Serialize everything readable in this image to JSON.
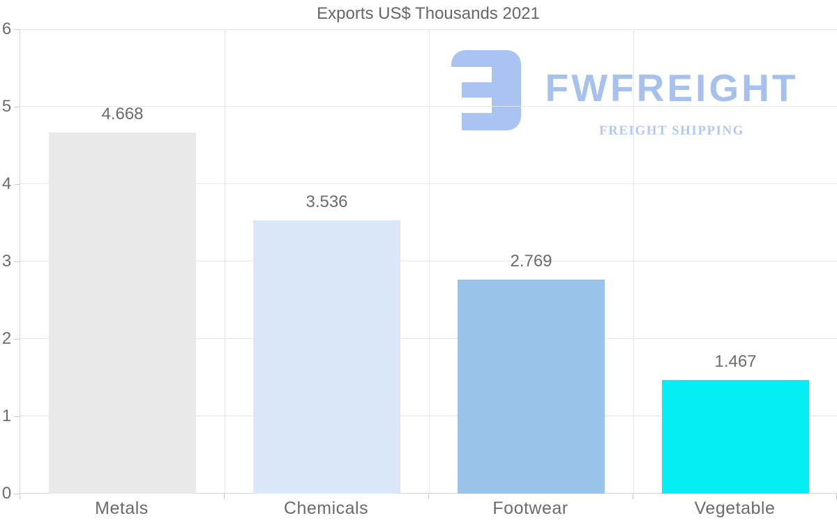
{
  "chart_data": {
    "type": "bar",
    "title": "Exports US$ Thousands 2021",
    "categories": [
      "Metals",
      "Chemicals",
      "Footwear",
      "Vegetable"
    ],
    "values": [
      4.668,
      3.536,
      2.769,
      1.467
    ],
    "value_labels": [
      "4.668",
      "3.536",
      "2.769",
      "1.467"
    ],
    "bar_colors": [
      "#e9e9e9",
      "#d9e7f8",
      "#99c3e9",
      "#05eef6"
    ],
    "xlabel": "",
    "ylabel": "",
    "ylim": [
      0,
      6
    ],
    "y_ticks": [
      "0",
      "1",
      "2",
      "3",
      "4",
      "5",
      "6"
    ],
    "grid": "on",
    "legend": "none"
  },
  "watermark": {
    "brand": "FWFREIGHT",
    "tagline": "FREIGHT SHIPPING",
    "brand_color": "#a6c1ee",
    "tagline_color": "#b3c9f1",
    "icon_color": "#a9c4f0"
  },
  "style": {
    "title_color": "#666666",
    "label_color": "#6b6b6b",
    "grid_color": "#e6e6e6",
    "axis_color": "#d6d6d6",
    "tick_color": "#c9c9c9",
    "background": "#ffffff"
  }
}
